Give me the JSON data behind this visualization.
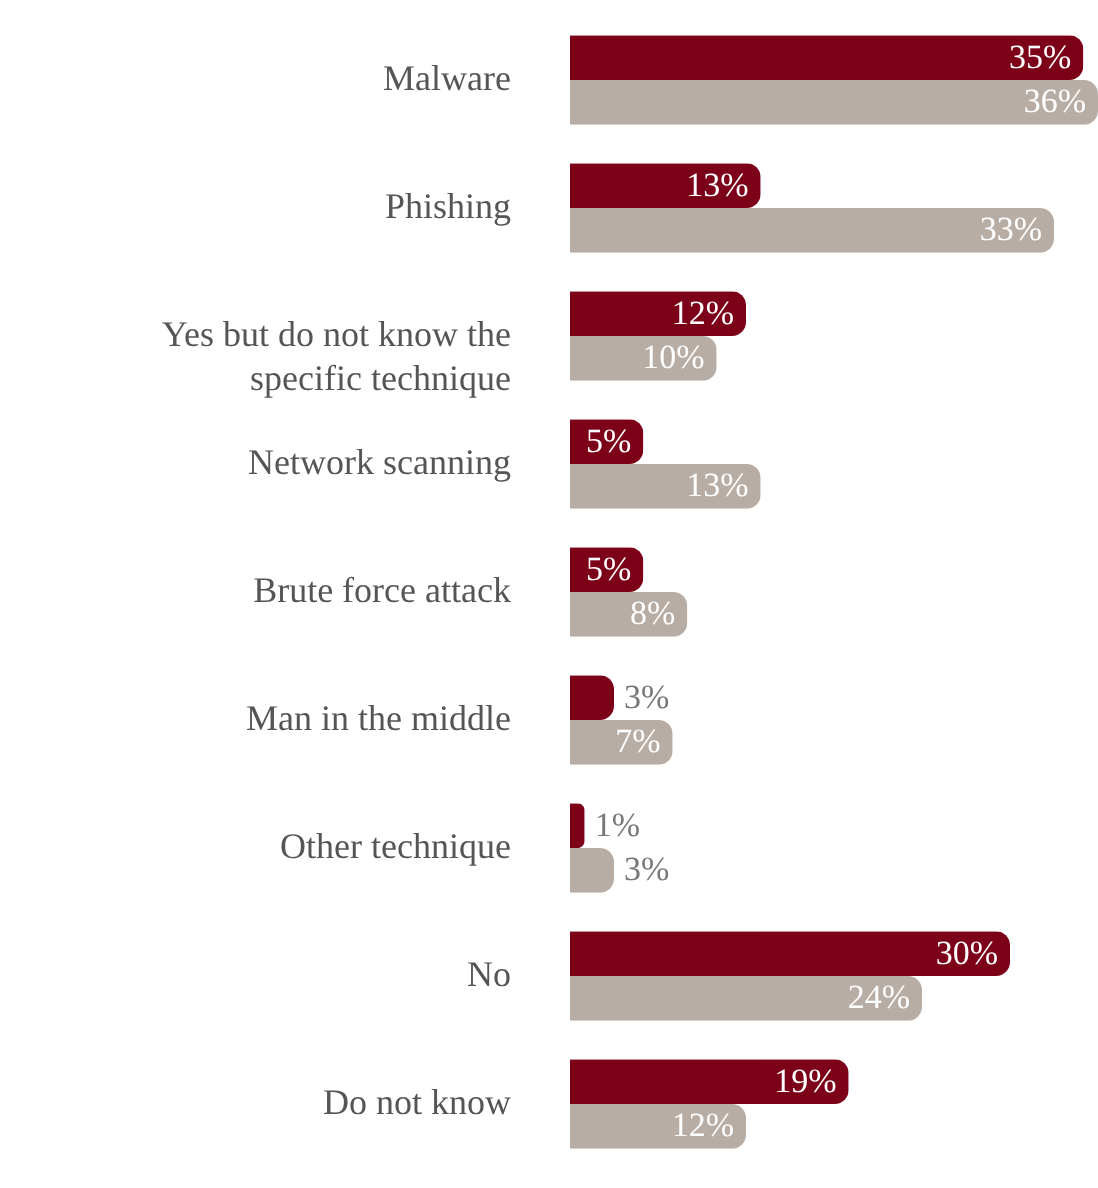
{
  "chart_data": {
    "type": "bar",
    "orientation": "horizontal",
    "categories": [
      "Malware",
      "Phishing",
      "Yes but do not know the specific technique",
      "Network scanning",
      "Brute force attack",
      "Man in the middle",
      "Other  technique",
      "No",
      "Do not know"
    ],
    "series": [
      {
        "color": "#7d0019",
        "values": [
          35,
          13,
          12,
          5,
          5,
          3,
          1,
          30,
          19
        ],
        "value_labels": [
          "35%",
          "13%",
          "12%",
          "5%",
          "5%",
          "3%",
          "1%",
          "30%",
          "19%"
        ]
      },
      {
        "color": "#b8ada5",
        "values": [
          36,
          33,
          10,
          13,
          8,
          7,
          3,
          24,
          12
        ],
        "value_labels": [
          "36%",
          "33%",
          "10%",
          "13%",
          "8%",
          "7%",
          "3%",
          "24%",
          "12%"
        ]
      }
    ]
  }
}
